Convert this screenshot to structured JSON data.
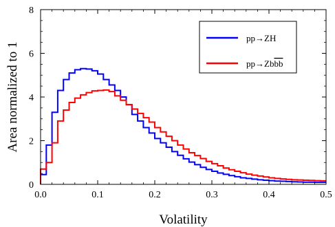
{
  "chart_data": {
    "type": "line",
    "subtype": "step-histogram",
    "title": "",
    "xlabel": "Volatility",
    "ylabel": "Area normalized to 1",
    "xlim": [
      0.0,
      0.5
    ],
    "ylim": [
      0,
      8
    ],
    "x_ticks": [
      "0.0",
      "0.1",
      "0.2",
      "0.3",
      "0.4",
      "0.5"
    ],
    "y_ticks": [
      "0",
      "2",
      "4",
      "6",
      "8"
    ],
    "grid": false,
    "legend_position": "top-right",
    "bin_edges": [
      0.0,
      0.01,
      0.02,
      0.03,
      0.04,
      0.05,
      0.06,
      0.07,
      0.08,
      0.09,
      0.1,
      0.11,
      0.12,
      0.13,
      0.14,
      0.15,
      0.16,
      0.17,
      0.18,
      0.19,
      0.2,
      0.21,
      0.22,
      0.23,
      0.24,
      0.25,
      0.26,
      0.27,
      0.28,
      0.29,
      0.3,
      0.31,
      0.32,
      0.33,
      0.34,
      0.35,
      0.36,
      0.37,
      0.38,
      0.39,
      0.4,
      0.41,
      0.42,
      0.43,
      0.44,
      0.45,
      0.46,
      0.47,
      0.48,
      0.49,
      0.5
    ],
    "series": [
      {
        "name": "pp→ZH",
        "name_base": "pp→ZH",
        "name_bars": "",
        "color": "#0000ff",
        "values": [
          0.45,
          1.8,
          3.3,
          4.3,
          4.8,
          5.1,
          5.25,
          5.3,
          5.28,
          5.2,
          5.05,
          4.8,
          4.55,
          4.3,
          4.0,
          3.65,
          3.2,
          2.9,
          2.6,
          2.35,
          2.1,
          1.9,
          1.7,
          1.5,
          1.33,
          1.17,
          1.02,
          0.9,
          0.78,
          0.68,
          0.6,
          0.52,
          0.46,
          0.4,
          0.35,
          0.3,
          0.27,
          0.24,
          0.21,
          0.19,
          0.17,
          0.15,
          0.14,
          0.13,
          0.12,
          0.11,
          0.1,
          0.1,
          0.09,
          0.09
        ]
      },
      {
        "name": "pp→Zbb",
        "name_base": "pp→Zb",
        "name_bars": "bb",
        "color": "#ff0000",
        "values": [
          0.7,
          1.0,
          1.9,
          2.9,
          3.4,
          3.75,
          3.95,
          4.1,
          4.2,
          4.28,
          4.3,
          4.32,
          4.25,
          4.05,
          3.85,
          3.65,
          3.45,
          3.25,
          3.05,
          2.85,
          2.6,
          2.4,
          2.2,
          2.0,
          1.8,
          1.62,
          1.45,
          1.32,
          1.18,
          1.05,
          0.95,
          0.85,
          0.75,
          0.67,
          0.6,
          0.53,
          0.47,
          0.42,
          0.38,
          0.34,
          0.3,
          0.27,
          0.25,
          0.23,
          0.21,
          0.2,
          0.19,
          0.18,
          0.17,
          0.16
        ]
      }
    ]
  }
}
